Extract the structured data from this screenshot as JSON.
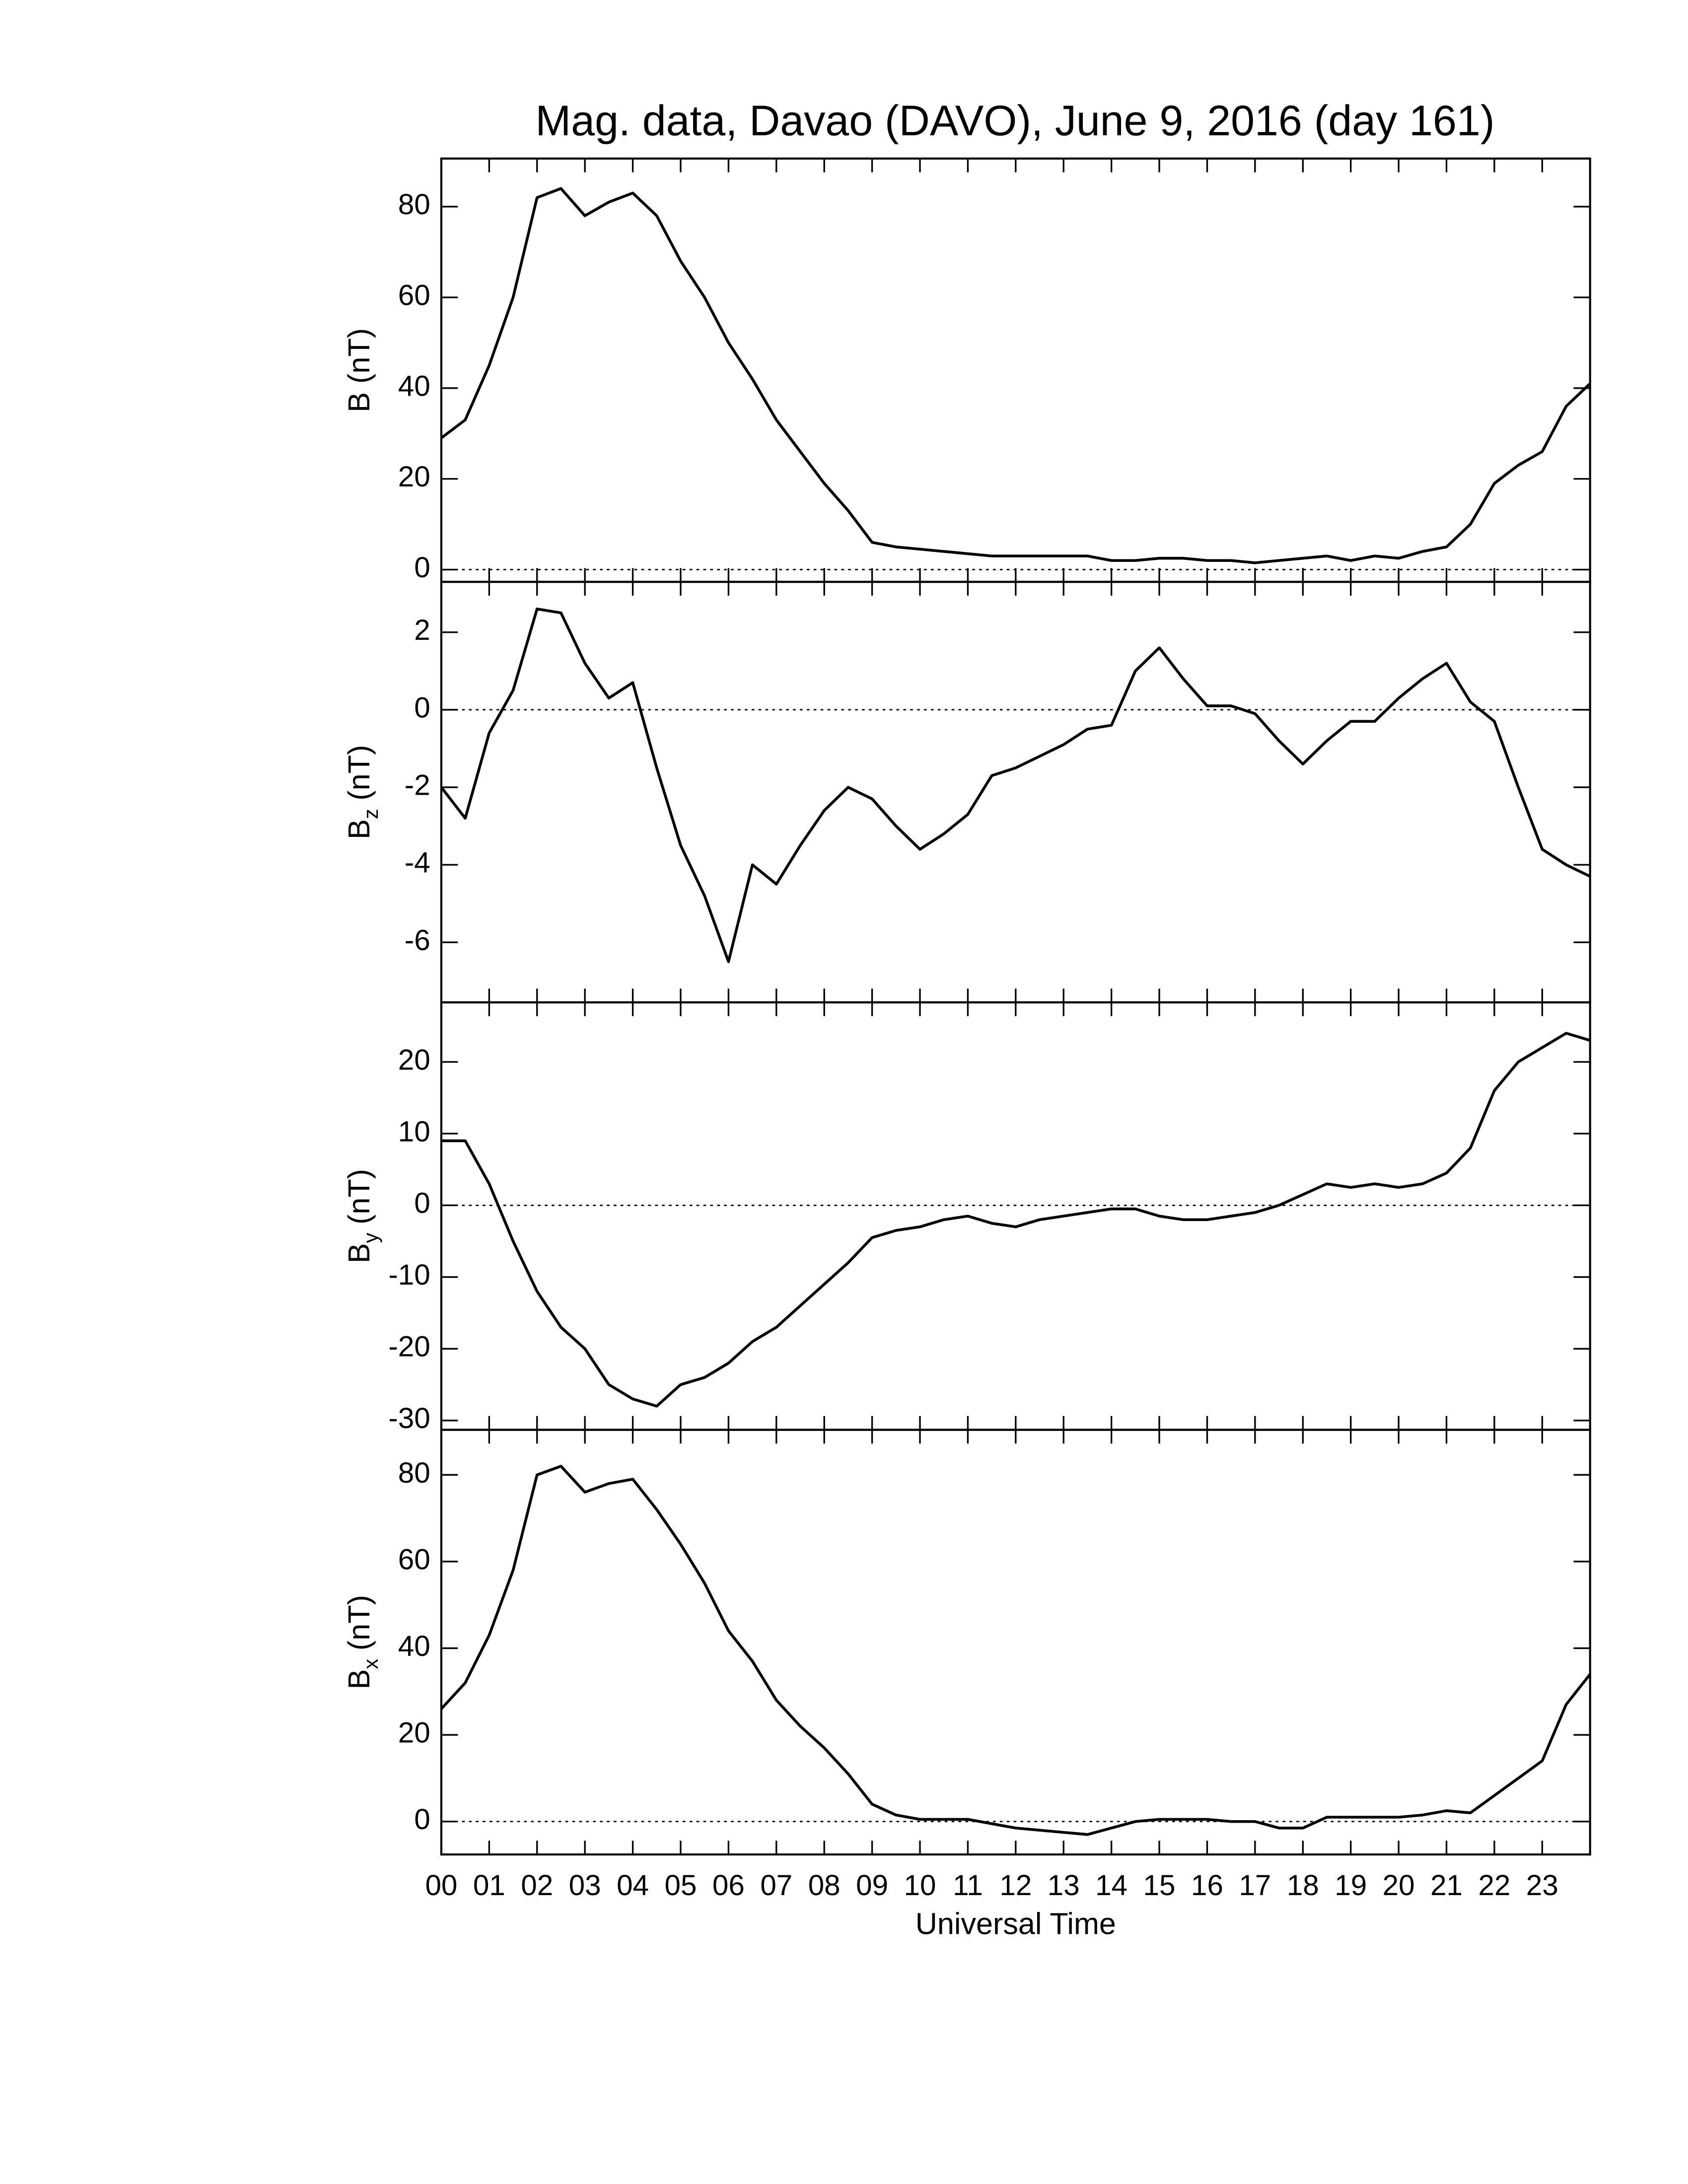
{
  "chart_data": [
    {
      "type": "line",
      "title": "Mag. data, Davao (DAVO), June 9, 2016 (day 161)",
      "ylabel": "B (nT)",
      "color": "#000000",
      "x": [
        0,
        0.5,
        1,
        1.5,
        2,
        2.5,
        3,
        3.5,
        4,
        4.5,
        5,
        5.5,
        6,
        6.5,
        7,
        7.5,
        8,
        8.5,
        9,
        9.5,
        10,
        10.5,
        11,
        11.5,
        12,
        12.5,
        13,
        13.5,
        14,
        14.5,
        15,
        15.5,
        16,
        16.5,
        17,
        17.5,
        18,
        18.5,
        19,
        19.5,
        20,
        20.5,
        21,
        21.5,
        22,
        22.5,
        23,
        23.5,
        24
      ],
      "values": [
        29,
        33,
        45,
        60,
        82,
        84,
        78,
        81,
        83,
        78,
        68,
        60,
        50,
        42,
        33,
        26,
        19,
        13,
        6,
        5,
        4.5,
        4,
        3.5,
        3,
        3,
        3,
        3,
        3,
        2,
        2,
        2.5,
        2.5,
        2,
        2,
        1.5,
        2,
        2.5,
        3,
        2,
        3,
        2.5,
        4,
        5,
        10,
        19,
        23,
        26,
        36,
        41
      ],
      "xlim": [
        0,
        24
      ],
      "ylim": [
        -2.7,
        90.6
      ],
      "yticks": [
        0,
        20,
        40,
        60,
        80
      ],
      "reference_line": 0
    },
    {
      "type": "line",
      "ylabel": "B",
      "ylabel_sub": "z",
      "ylabel_unit": "(nT)",
      "color": "#000000",
      "x": [
        0,
        0.5,
        1,
        1.5,
        2,
        2.5,
        3,
        3.5,
        4,
        4.5,
        5,
        5.5,
        6,
        6.5,
        7,
        7.5,
        8,
        8.5,
        9,
        9.5,
        10,
        10.5,
        11,
        11.5,
        12,
        12.5,
        13,
        13.5,
        14,
        14.5,
        15,
        15.5,
        16,
        16.5,
        17,
        17.5,
        18,
        18.5,
        19,
        19.5,
        20,
        20.5,
        21,
        21.5,
        22,
        22.5,
        23,
        23.5,
        24
      ],
      "values": [
        -2,
        -2.8,
        -0.6,
        0.5,
        2.6,
        2.5,
        1.2,
        0.3,
        0.7,
        -1.5,
        -3.5,
        -4.8,
        -6.5,
        -4,
        -4.5,
        -3.5,
        -2.6,
        -2,
        -2.3,
        -3,
        -3.6,
        -3.2,
        -2.7,
        -1.7,
        -1.5,
        -1.2,
        -0.9,
        -0.5,
        -0.4,
        1,
        1.6,
        0.8,
        0.1,
        0.1,
        -0.1,
        -0.8,
        -1.4,
        -0.8,
        -0.3,
        -0.3,
        0.3,
        0.8,
        1.2,
        0.2,
        -0.3,
        -2,
        -3.6,
        -4,
        -4.3
      ],
      "xlim": [
        0,
        24
      ],
      "ylim": [
        -7.55,
        3.3
      ],
      "yticks": [
        -6,
        -4,
        -2,
        0,
        2
      ],
      "reference_line": 0
    },
    {
      "type": "line",
      "ylabel": "B",
      "ylabel_sub": "y",
      "ylabel_unit": "(nT)",
      "color": "#000000",
      "x": [
        0,
        0.5,
        1,
        1.5,
        2,
        2.5,
        3,
        3.5,
        4,
        4.5,
        5,
        5.5,
        6,
        6.5,
        7,
        7.5,
        8,
        8.5,
        9,
        9.5,
        10,
        10.5,
        11,
        11.5,
        12,
        12.5,
        13,
        13.5,
        14,
        14.5,
        15,
        15.5,
        16,
        16.5,
        17,
        17.5,
        18,
        18.5,
        19,
        19.5,
        20,
        20.5,
        21,
        21.5,
        22,
        22.5,
        23,
        23.5,
        24
      ],
      "values": [
        9,
        9,
        3,
        -5,
        -12,
        -17,
        -20,
        -25,
        -27,
        -28,
        -25,
        -24,
        -22,
        -19,
        -17,
        -14,
        -11,
        -8,
        -4.5,
        -3.5,
        -3,
        -2,
        -1.5,
        -2.5,
        -3,
        -2,
        -1.5,
        -1,
        -0.5,
        -0.5,
        -1.5,
        -2,
        -2,
        -1.5,
        -1,
        0,
        1.5,
        3,
        2.5,
        3,
        2.5,
        3,
        4.5,
        8,
        16,
        20,
        22,
        24,
        23
      ],
      "xlim": [
        0,
        24
      ],
      "ylim": [
        -31.3,
        28.3
      ],
      "yticks": [
        -30,
        -20,
        -10,
        0,
        10,
        20
      ],
      "reference_line": 0
    },
    {
      "type": "line",
      "ylabel": "B",
      "ylabel_sub": "x",
      "ylabel_unit": "(nT)",
      "xlabel": "Universal Time",
      "color": "#000000",
      "x": [
        0,
        0.5,
        1,
        1.5,
        2,
        2.5,
        3,
        3.5,
        4,
        4.5,
        5,
        5.5,
        6,
        6.5,
        7,
        7.5,
        8,
        8.5,
        9,
        9.5,
        10,
        10.5,
        11,
        11.5,
        12,
        12.5,
        13,
        13.5,
        14,
        14.5,
        15,
        15.5,
        16,
        16.5,
        17,
        17.5,
        18,
        18.5,
        19,
        19.5,
        20,
        20.5,
        21,
        21.5,
        22,
        22.5,
        23,
        23.5,
        24
      ],
      "values": [
        26,
        32,
        43,
        58,
        80,
        82,
        76,
        78,
        79,
        72,
        64,
        55,
        44,
        37,
        28,
        22,
        17,
        11,
        4,
        1.5,
        0.5,
        0.5,
        0.5,
        -0.5,
        -1.5,
        -2,
        -2.5,
        -3,
        -1.5,
        0,
        0.5,
        0.5,
        0.5,
        0,
        0,
        -1.5,
        -1.5,
        1,
        1,
        1,
        1,
        1.5,
        2.5,
        2,
        6,
        10,
        14,
        27,
        34
      ],
      "xlim": [
        0,
        24
      ],
      "ylim": [
        -7.6,
        90.4
      ],
      "yticks": [
        0,
        20,
        40,
        60,
        80
      ],
      "reference_line": 0,
      "xticks": [
        {
          "value": 0,
          "label": "00"
        },
        {
          "value": 1,
          "label": "01"
        },
        {
          "value": 2,
          "label": "02"
        },
        {
          "value": 3,
          "label": "03"
        },
        {
          "value": 4,
          "label": "04"
        },
        {
          "value": 5,
          "label": "05"
        },
        {
          "value": 6,
          "label": "06"
        },
        {
          "value": 7,
          "label": "07"
        },
        {
          "value": 8,
          "label": "08"
        },
        {
          "value": 9,
          "label": "09"
        },
        {
          "value": 10,
          "label": "10"
        },
        {
          "value": 11,
          "label": "11"
        },
        {
          "value": 12,
          "label": "12"
        },
        {
          "value": 13,
          "label": "13"
        },
        {
          "value": 14,
          "label": "14"
        },
        {
          "value": 15,
          "label": "15"
        },
        {
          "value": 16,
          "label": "16"
        },
        {
          "value": 17,
          "label": "17"
        },
        {
          "value": 18,
          "label": "18"
        },
        {
          "value": 19,
          "label": "19"
        },
        {
          "value": 20,
          "label": "20"
        },
        {
          "value": 21,
          "label": "21"
        },
        {
          "value": 22,
          "label": "22"
        },
        {
          "value": 23,
          "label": "23"
        }
      ]
    }
  ]
}
